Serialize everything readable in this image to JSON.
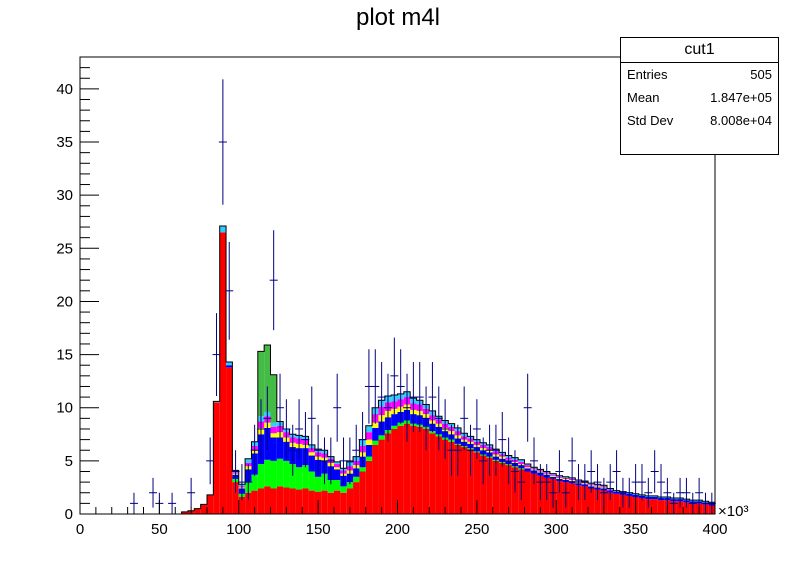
{
  "chart_data": {
    "type": "bar",
    "title": "plot m4l",
    "xlim": [
      0,
      400
    ],
    "ylim": [
      0,
      43
    ],
    "x_multiplier": "×10³",
    "x_ticks": [
      0,
      50,
      100,
      150,
      200,
      250,
      300,
      350,
      400
    ],
    "y_ticks": [
      0,
      5,
      10,
      15,
      20,
      25,
      30,
      35,
      40
    ],
    "bin_width": 4,
    "stacked": true,
    "series": [
      {
        "color": "#ff0000",
        "values": [
          0,
          0,
          0,
          0,
          0,
          0,
          0,
          0,
          0,
          0,
          0,
          0,
          0,
          0,
          0,
          0,
          0.2,
          0.3,
          0.5,
          0.9,
          1.8,
          10.5,
          26.5,
          13.8,
          3.0,
          1.6,
          2.0,
          2.2,
          2.4,
          2.6,
          2.4,
          2.6,
          2.5,
          2.4,
          2.3,
          2.4,
          2.2,
          2.1,
          2.2,
          2.0,
          2.2,
          2.0,
          2.4,
          3.0,
          4.0,
          5.0,
          6.5,
          7.0,
          7.6,
          8.0,
          8.3,
          8.5,
          8.3,
          8.2,
          8.0,
          7.6,
          7.3,
          7.0,
          6.8,
          6.5,
          6.3,
          6.1,
          5.8,
          5.5,
          5.3,
          5.0,
          4.8,
          4.6,
          4.4,
          4.2,
          4.0,
          3.8,
          3.6,
          3.4,
          3.3,
          3.1,
          3.0,
          2.9,
          2.7,
          2.6,
          2.4,
          2.3,
          2.2,
          2.0,
          1.9,
          1.8,
          1.7,
          1.6,
          1.5,
          1.4,
          1.4,
          1.3,
          1.3,
          1.2,
          1.2,
          1.1,
          1.0,
          1.0,
          0.9,
          0.8
        ]
      },
      {
        "color": "#00ff00",
        "values": [
          0,
          0,
          0,
          0,
          0,
          0,
          0,
          0,
          0,
          0,
          0,
          0,
          0,
          0,
          0,
          0,
          0,
          0,
          0,
          0,
          0,
          0,
          0,
          0,
          0.3,
          0.3,
          1.0,
          1.5,
          2.3,
          2.5,
          2.6,
          2.6,
          2.5,
          2.3,
          2.1,
          2.2,
          1.8,
          1.4,
          1.6,
          1.2,
          1.0,
          0.6,
          0.6,
          0.5,
          0.4,
          0.4,
          0.4,
          0.4,
          0.3,
          0.3,
          0.3,
          0.3,
          0.2,
          0.2,
          0.2,
          0.2,
          0.2,
          0.2,
          0.2,
          0.1,
          0.1,
          0.1,
          0.1,
          0.1,
          0.1,
          0.1,
          0.1,
          0.1,
          0.1,
          0.1,
          0,
          0,
          0,
          0,
          0,
          0,
          0,
          0,
          0,
          0,
          0,
          0,
          0,
          0,
          0,
          0,
          0,
          0,
          0,
          0,
          0,
          0,
          0,
          0,
          0,
          0,
          0,
          0,
          0,
          0
        ]
      },
      {
        "color": "#0000ff",
        "values": [
          0,
          0,
          0,
          0,
          0,
          0,
          0,
          0,
          0,
          0,
          0,
          0,
          0,
          0,
          0,
          0,
          0,
          0,
          0,
          0,
          0,
          0,
          0,
          0.2,
          0.4,
          0.5,
          1.2,
          2.0,
          2.8,
          3.0,
          2.2,
          2.0,
          1.8,
          1.6,
          1.8,
          1.6,
          1.5,
          1.6,
          1.2,
          1.3,
          1.0,
          1.0,
          0.8,
          0.8,
          1.0,
          1.1,
          1.2,
          1.3,
          1.2,
          1.1,
          1.0,
          1.0,
          0.9,
          0.9,
          0.8,
          0.7,
          0.7,
          0.6,
          0.5,
          0.5,
          0.4,
          0.4,
          0.4,
          0.4,
          0.4,
          0.3,
          0.3,
          0.3,
          0.3,
          0.3,
          0.3,
          0.3,
          0.3,
          0.3,
          0.2,
          0.2,
          0.2,
          0.2,
          0.2,
          0.2,
          0.2,
          0.2,
          0.2,
          0.2,
          0.2,
          0.2,
          0.2,
          0.2,
          0.2,
          0.2,
          0.2,
          0.2,
          0.2,
          0.2,
          0.2,
          0.2,
          0.2,
          0.2,
          0.2,
          0.2
        ]
      },
      {
        "color": "#ffff00",
        "values": [
          0,
          0,
          0,
          0,
          0,
          0,
          0,
          0,
          0,
          0,
          0,
          0,
          0,
          0,
          0,
          0,
          0,
          0,
          0,
          0,
          0,
          0,
          0,
          0,
          0.1,
          0.1,
          0.3,
          0.3,
          0.6,
          0.5,
          0.4,
          0.5,
          0.4,
          0.4,
          0.4,
          0.3,
          0.3,
          0.3,
          0.3,
          0.3,
          0.2,
          0.2,
          0.3,
          0.3,
          0.4,
          0.5,
          0.5,
          0.6,
          0.6,
          0.5,
          0.5,
          0.5,
          0.4,
          0.4,
          0.4,
          0.3,
          0.3,
          0.3,
          0.3,
          0.3,
          0.2,
          0.2,
          0.2,
          0.2,
          0.2,
          0.2,
          0.2,
          0.1,
          0.1,
          0.1,
          0.1,
          0.1,
          0.1,
          0.1,
          0.1,
          0.1,
          0.1,
          0.1,
          0.1,
          0.1,
          0.1,
          0.1,
          0.1,
          0,
          0,
          0,
          0,
          0,
          0,
          0,
          0,
          0,
          0,
          0,
          0,
          0,
          0,
          0,
          0,
          0
        ]
      },
      {
        "color": "#ff00ff",
        "values": [
          0,
          0,
          0,
          0,
          0,
          0,
          0,
          0,
          0,
          0,
          0,
          0,
          0,
          0,
          0,
          0,
          0,
          0,
          0,
          0,
          0,
          0,
          0,
          0,
          0.1,
          0.1,
          0.3,
          0.4,
          0.6,
          0.6,
          0.6,
          0.6,
          0.5,
          0.5,
          0.5,
          0.5,
          0.4,
          0.4,
          0.4,
          0.4,
          0.3,
          0.3,
          0.4,
          0.4,
          0.6,
          0.7,
          0.8,
          0.8,
          0.8,
          0.7,
          0.7,
          0.7,
          0.6,
          0.6,
          0.5,
          0.5,
          0.4,
          0.4,
          0.4,
          0.4,
          0.3,
          0.3,
          0.3,
          0.3,
          0.3,
          0.3,
          0.2,
          0.2,
          0.2,
          0.2,
          0.2,
          0.1,
          0.1,
          0.1,
          0.1,
          0.1,
          0.1,
          0.1,
          0.1,
          0.1,
          0.1,
          0.1,
          0.1,
          0.1,
          0,
          0,
          0,
          0,
          0,
          0,
          0,
          0,
          0,
          0,
          0,
          0,
          0,
          0,
          0,
          0
        ]
      },
      {
        "color": "#33ccff",
        "values": [
          0,
          0,
          0,
          0,
          0,
          0,
          0,
          0,
          0,
          0,
          0,
          0,
          0,
          0,
          0,
          0,
          0,
          0,
          0,
          0,
          0,
          0.1,
          0.6,
          0.3,
          0.2,
          0.2,
          0.4,
          0.4,
          0.5,
          0.4,
          0.4,
          0.4,
          0.3,
          0.3,
          0.3,
          0.3,
          0.3,
          0.3,
          0.3,
          0.2,
          0.2,
          0.2,
          0.4,
          0.4,
          0.6,
          0.6,
          0.6,
          0.6,
          0.6,
          0.6,
          0.5,
          0.5,
          0.5,
          0.4,
          0.4,
          0.4,
          0.3,
          0.3,
          0.3,
          0.3,
          0.3,
          0.2,
          0.2,
          0.2,
          0.2,
          0.2,
          0.2,
          0.2,
          0.2,
          0.2,
          0.1,
          0.1,
          0.1,
          0.1,
          0.1,
          0.1,
          0.1,
          0.1,
          0.1,
          0.1,
          0.1,
          0.1,
          0.1,
          0.1,
          0.1,
          0.1,
          0.1,
          0.1,
          0.1,
          0.1,
          0.1,
          0.1,
          0.1,
          0.1,
          0.1,
          0.1,
          0.1,
          0.1,
          0.1,
          0.1
        ]
      },
      {
        "color": "#44bb44",
        "values": [
          0,
          0,
          0,
          0,
          0,
          0,
          0,
          0,
          0,
          0,
          0,
          0,
          0,
          0,
          0,
          0,
          0,
          0,
          0,
          0,
          0,
          0,
          0,
          0,
          0,
          0,
          0,
          0,
          6.1,
          6.3,
          4.5,
          0,
          0,
          0,
          0,
          0,
          0,
          0,
          0,
          0,
          0,
          0,
          0,
          0,
          0,
          0,
          0,
          0,
          0,
          0,
          0,
          0,
          0,
          0,
          0,
          0,
          0,
          0,
          0,
          0,
          0,
          0,
          0,
          0,
          0,
          0,
          0,
          0,
          0,
          0,
          0,
          0,
          0,
          0,
          0,
          0,
          0,
          0,
          0,
          0,
          0,
          0,
          0,
          0,
          0,
          0,
          0,
          0,
          0,
          0,
          0,
          0,
          0,
          0,
          0,
          0,
          0,
          0,
          0,
          0
        ]
      }
    ],
    "data_points": {
      "x": [
        34,
        46,
        50,
        58,
        70,
        82,
        86,
        90,
        94,
        98,
        102,
        106,
        110,
        114,
        118,
        122,
        126,
        130,
        134,
        138,
        142,
        146,
        150,
        154,
        158,
        162,
        166,
        170,
        174,
        178,
        182,
        186,
        190,
        194,
        198,
        202,
        206,
        210,
        214,
        218,
        222,
        226,
        230,
        234,
        238,
        242,
        246,
        250,
        254,
        258,
        262,
        266,
        270,
        274,
        278,
        282,
        286,
        290,
        294,
        298,
        302,
        306,
        310,
        314,
        318,
        322,
        326,
        330,
        334,
        338,
        342,
        346,
        350,
        354,
        358,
        362,
        366,
        370,
        374,
        378,
        382,
        386,
        390,
        394,
        398
      ],
      "y": [
        1,
        2,
        1,
        1,
        2,
        5,
        15,
        35,
        21,
        4,
        3,
        3,
        6,
        8,
        9,
        22,
        10,
        8,
        6,
        8,
        7,
        9,
        6,
        5,
        5,
        10,
        5,
        5,
        6,
        7,
        12,
        12,
        11,
        10,
        13,
        12,
        10,
        11,
        11,
        9,
        11,
        9,
        8,
        6,
        6,
        9,
        6,
        8,
        5,
        6,
        6,
        7,
        5,
        4,
        3,
        10,
        5,
        3,
        3,
        2,
        4,
        2,
        5,
        3,
        3,
        4,
        3,
        2,
        3,
        4,
        2,
        2,
        3,
        3,
        2,
        4,
        3,
        2,
        1,
        2,
        2,
        1,
        2,
        1,
        1
      ],
      "err": [
        1,
        1.4,
        1,
        1,
        1.4,
        2.2,
        3.9,
        5.9,
        4.6,
        2,
        1.7,
        1.7,
        2.4,
        2.8,
        3,
        4.7,
        3.2,
        2.8,
        2.4,
        2.8,
        2.6,
        3,
        2.4,
        2.2,
        2.2,
        3.2,
        2.2,
        2.2,
        2.4,
        2.6,
        3.5,
        3.5,
        3.3,
        3.2,
        3.6,
        3.5,
        3.2,
        3.3,
        3.3,
        3,
        3.3,
        3,
        2.8,
        2.4,
        2.4,
        3,
        2.4,
        2.8,
        2.2,
        2.4,
        2.4,
        2.6,
        2.2,
        2,
        1.7,
        3.2,
        2.2,
        1.7,
        1.7,
        1.4,
        2,
        1.4,
        2.2,
        1.7,
        1.7,
        2,
        1.7,
        1.4,
        1.7,
        2,
        1.4,
        1.4,
        1.7,
        1.7,
        1.4,
        2,
        1.7,
        1.4,
        1,
        1.4,
        1.4,
        1,
        1.4,
        1,
        1
      ],
      "color": "#000080"
    },
    "stats": {
      "name": "cut1",
      "rows": [
        {
          "label": "Entries",
          "value": "505"
        },
        {
          "label": "Mean",
          "value": "1.847e+05"
        },
        {
          "label": "Std Dev",
          "value": "8.008e+04"
        }
      ]
    }
  }
}
